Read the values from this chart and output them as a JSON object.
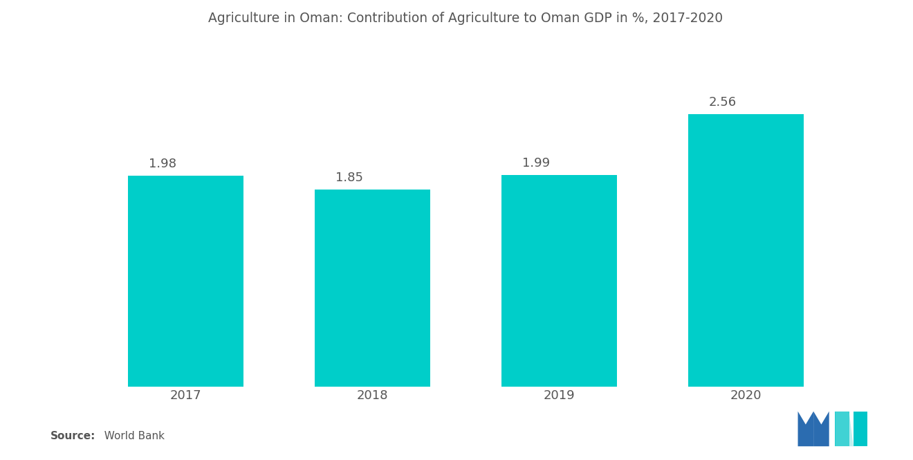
{
  "title": "Agriculture in Oman: Contribution of Agriculture to Oman GDP in %, 2017-2020",
  "categories": [
    "2017",
    "2018",
    "2019",
    "2020"
  ],
  "values": [
    1.98,
    1.85,
    1.99,
    2.56
  ],
  "bar_color": "#00CEC9",
  "background_color": "#FFFFFF",
  "label_color": "#555555",
  "title_fontsize": 13.5,
  "label_fontsize": 13,
  "tick_fontsize": 13,
  "source_bold": "Source:",
  "source_normal": "  World Bank",
  "ylim": [
    0,
    3.2
  ],
  "bar_width": 0.62,
  "logo_blue": "#2B6CB0",
  "logo_teal": "#00C5C8"
}
